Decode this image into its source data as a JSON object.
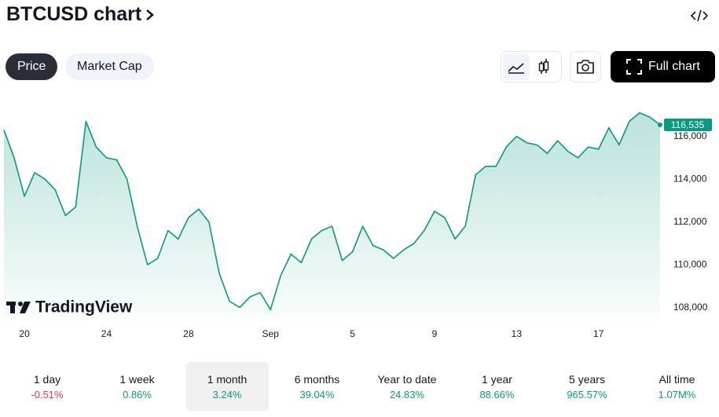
{
  "chart_data": {
    "type": "line",
    "title": "BTCUSD chart",
    "categories": [
      null,
      null,
      "20",
      null,
      null,
      null,
      null,
      null,
      null,
      null,
      "24",
      null,
      null,
      null,
      null,
      null,
      null,
      null,
      "28",
      null,
      null,
      null,
      null,
      null,
      null,
      null,
      "Sep",
      null,
      null,
      null,
      null,
      null,
      null,
      null,
      "5",
      null,
      null,
      null,
      null,
      null,
      null,
      null,
      "9",
      null,
      null,
      null,
      null,
      null,
      null,
      null,
      "13",
      null,
      null,
      null,
      null,
      null,
      null,
      null,
      "17",
      null,
      null,
      null,
      null,
      null,
      null
    ],
    "series": [
      {
        "color": "#089981",
        "values": [
          116300,
          115000,
          113200,
          114300,
          114000,
          113500,
          112300,
          112700,
          116700,
          115500,
          115000,
          114900,
          114000,
          111800,
          110000,
          110300,
          111600,
          111200,
          112200,
          112600,
          112000,
          109600,
          108300,
          108000,
          108500,
          108700,
          107900,
          109500,
          110500,
          110100,
          111200,
          111600,
          111800,
          110200,
          110600,
          111800,
          110900,
          110700,
          110300,
          110700,
          111000,
          111600,
          112500,
          112200,
          111200,
          111800,
          114200,
          114600,
          114600,
          115500,
          116000,
          115700,
          115600,
          115200,
          115800,
          115300,
          115000,
          115500,
          115400,
          116400,
          115600,
          116700,
          117100,
          116900,
          116535
        ],
        "value_labels": [
          null,
          null,
          null,
          null,
          null,
          null,
          null,
          null,
          null,
          null,
          null,
          null,
          null,
          null,
          null,
          null,
          null,
          null,
          null,
          null,
          null,
          null,
          null,
          null,
          null,
          null,
          null,
          null,
          null,
          null,
          null,
          null,
          null,
          null,
          null,
          null,
          null,
          null,
          null,
          null,
          null,
          null,
          null,
          null,
          null,
          null,
          null,
          null,
          null,
          null,
          null,
          null,
          null,
          null,
          null,
          null,
          null,
          null,
          null,
          null,
          null,
          null,
          null,
          null,
          "116,535"
        ]
      }
    ],
    "ylim": [
      107400,
      117600
    ],
    "yticks": [
      {
        "value": 108000,
        "label": "108,000"
      },
      {
        "value": 110000,
        "label": "110,000"
      },
      {
        "value": 112000,
        "label": "112,000"
      },
      {
        "value": 114000,
        "label": "114,000"
      },
      {
        "value": 116000,
        "label": "116,000"
      }
    ],
    "grid": false
  },
  "ui": {
    "tabs": [
      "Price",
      "Market Cap"
    ],
    "selected_tab": 0,
    "full_chart": "Full chart",
    "brand": "TradingView",
    "periods": [
      {
        "name": "1 day",
        "change": "-0.51%"
      },
      {
        "name": "1 week",
        "change": "0.86%"
      },
      {
        "name": "1 month",
        "change": "3.24%"
      },
      {
        "name": "6 months",
        "change": "39.04%"
      },
      {
        "name": "Year to date",
        "change": "24.83%"
      },
      {
        "name": "1 year",
        "change": "88.66%"
      },
      {
        "name": "5 years",
        "change": "965.57%"
      },
      {
        "name": "All time",
        "change": "1.07M%"
      }
    ],
    "selected_period": 2
  }
}
